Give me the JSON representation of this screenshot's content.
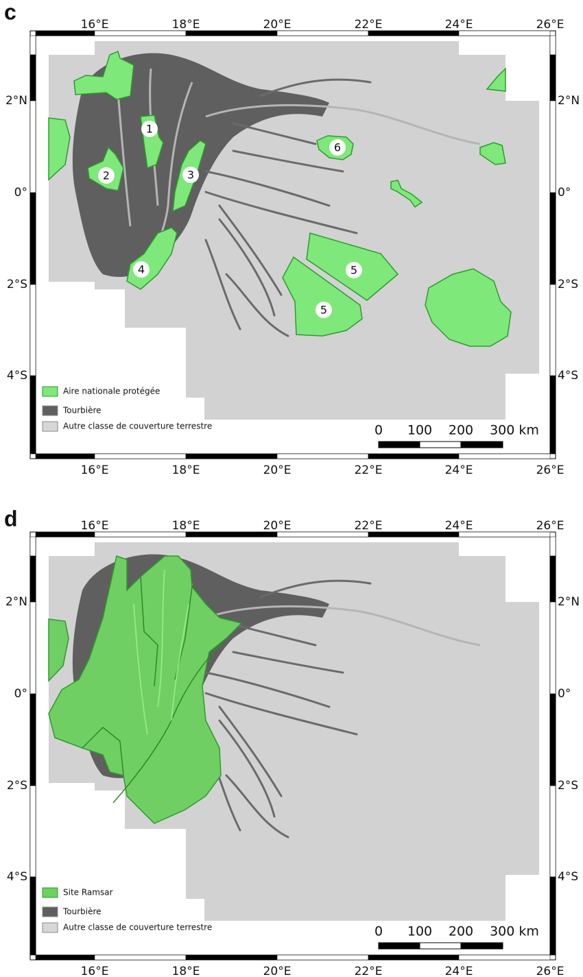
{
  "panels": [
    {
      "letter": "c",
      "lon_labels": [
        "16°E",
        "18°E",
        "20°E",
        "22°E",
        "24°E",
        "26°E"
      ],
      "lat_labels": [
        "2°N",
        "0°",
        "2°S",
        "4°S"
      ],
      "legend": [
        "Aire nationale protégée",
        "Tourbière",
        "Autre classe de couverture terrestre"
      ],
      "sites": [
        "1",
        "2",
        "3",
        "4",
        "5",
        "5",
        "6"
      ],
      "scale": [
        "0",
        "100",
        "200",
        "300 km"
      ]
    },
    {
      "letter": "d",
      "lon_labels": [
        "16°E",
        "18°E",
        "20°E",
        "22°E",
        "24°E",
        "26°E"
      ],
      "lat_labels": [
        "2°N",
        "0°",
        "2°S",
        "4°S"
      ],
      "legend": [
        "Site Ramsar",
        "Tourbière",
        "Autre classe de couverture terrestre"
      ],
      "scale": [
        "0",
        "100",
        "200",
        "300 km"
      ]
    }
  ]
}
